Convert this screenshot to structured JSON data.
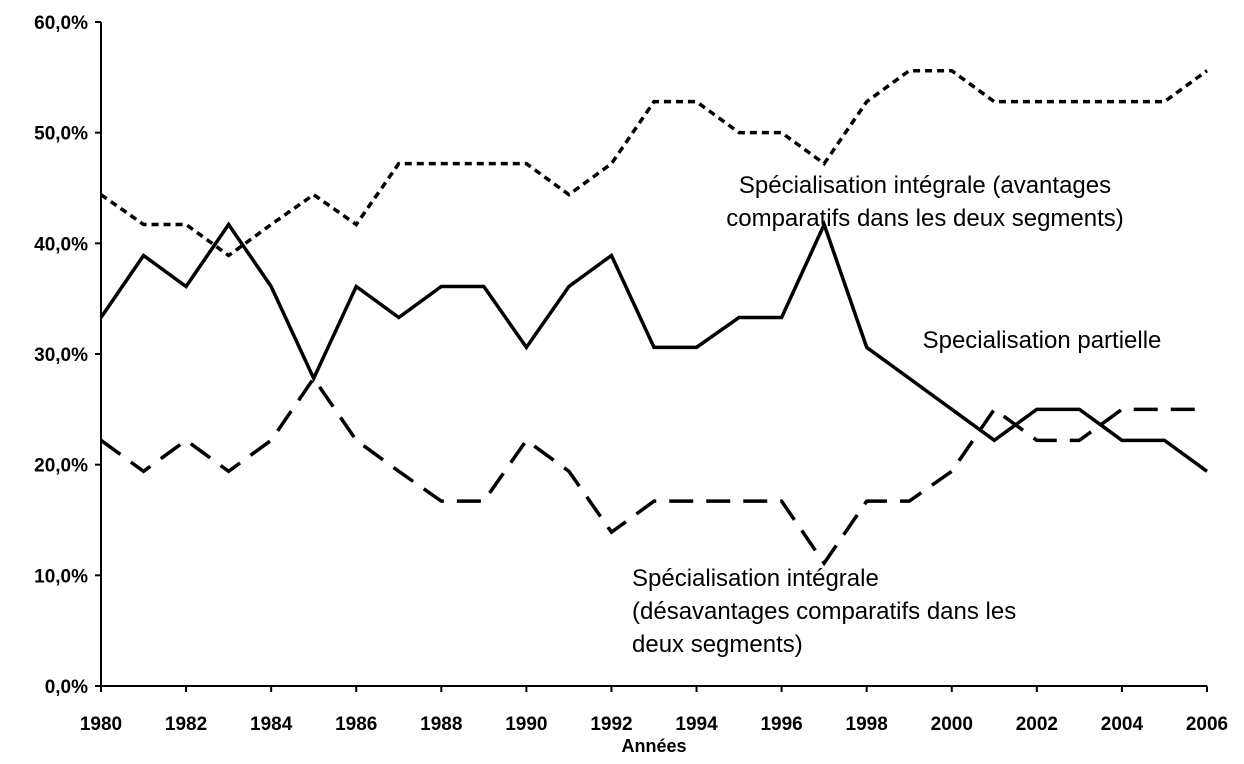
{
  "chart_data": {
    "type": "line",
    "xlabel": "Années",
    "x": [
      1980,
      1981,
      1982,
      1983,
      1984,
      1985,
      1986,
      1987,
      1988,
      1989,
      1990,
      1991,
      1992,
      1993,
      1994,
      1995,
      1996,
      1997,
      1998,
      1999,
      2000,
      2001,
      2002,
      2003,
      2004,
      2005,
      2006
    ],
    "xlim": [
      1980,
      2006
    ],
    "xticks": [
      1980,
      1982,
      1984,
      1986,
      1988,
      1990,
      1992,
      1994,
      1996,
      1998,
      2000,
      2002,
      2004,
      2006
    ],
    "ylim": [
      0,
      60
    ],
    "yticks": [
      {
        "value": 0,
        "label": "0,0%"
      },
      {
        "value": 10,
        "label": "10,0%"
      },
      {
        "value": 20,
        "label": "20,0%"
      },
      {
        "value": 30,
        "label": "30,0%"
      },
      {
        "value": 40,
        "label": "40,0%"
      },
      {
        "value": 50,
        "label": "50,0%"
      },
      {
        "value": 60,
        "label": "60,0%"
      }
    ],
    "grid": false,
    "series": [
      {
        "name": [
          "Spécialisation intégrale (avantages",
          "comparatifs dans les deux segments)"
        ],
        "color": "#000000",
        "linestyle": "dotted",
        "values": [
          44.4,
          41.7,
          41.7,
          38.9,
          41.7,
          44.4,
          41.7,
          47.2,
          47.2,
          47.2,
          47.2,
          44.4,
          47.2,
          52.8,
          52.8,
          50.0,
          50.0,
          47.2,
          52.8,
          55.6,
          55.6,
          52.8,
          52.8,
          52.8,
          52.8,
          52.8,
          55.6
        ]
      },
      {
        "name": [
          "Specialisation partielle"
        ],
        "color": "#000000",
        "linestyle": "solid",
        "values": [
          33.3,
          38.9,
          36.1,
          41.7,
          36.1,
          27.8,
          36.1,
          33.3,
          36.1,
          36.1,
          30.6,
          36.1,
          38.9,
          30.6,
          30.6,
          33.3,
          33.3,
          41.7,
          30.6,
          27.8,
          25.0,
          22.2,
          25.0,
          25.0,
          22.2,
          22.2,
          19.4
        ]
      },
      {
        "name": [
          "Spécialisation intégrale",
          "(désavantages comparatifs dans les",
          "deux segments)"
        ],
        "color": "#000000",
        "linestyle": "dashed",
        "values": [
          22.2,
          19.4,
          22.2,
          19.4,
          22.2,
          27.8,
          22.2,
          19.4,
          16.7,
          16.7,
          22.2,
          19.4,
          13.9,
          16.7,
          16.7,
          16.7,
          16.7,
          11.1,
          16.7,
          16.7,
          19.4,
          25.0,
          22.2,
          22.2,
          25.0,
          25.0,
          25.0
        ]
      }
    ]
  }
}
